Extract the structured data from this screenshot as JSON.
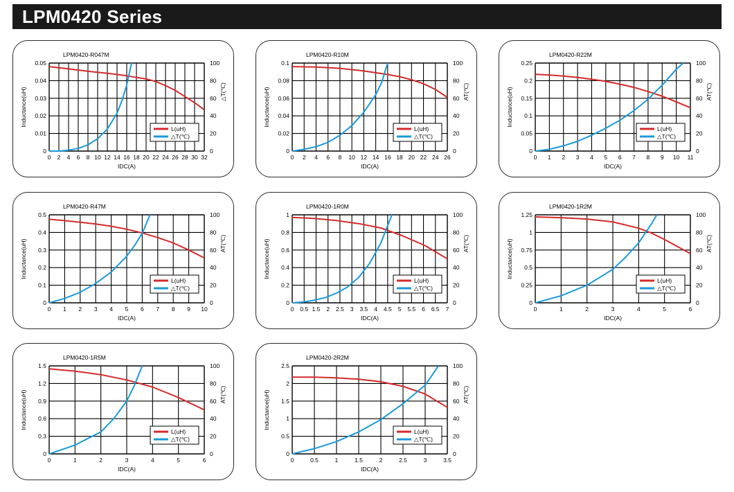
{
  "page": {
    "title": "LPM0420 Series"
  },
  "colors": {
    "inductance": "#d42a2a",
    "temperature": "#1a9ad9",
    "grid": "#000000"
  },
  "chart_data": [
    {
      "type": "line",
      "title": "LPM0420-R047M",
      "xlabel": "IDC(A)",
      "ylabel": "Inductance(uH)",
      "y2label": "△T(℃)",
      "xlim": [
        0,
        32
      ],
      "ylim": [
        0,
        0.05
      ],
      "y2lim": [
        0,
        100
      ],
      "xticks": [
        "0",
        "2",
        "4",
        "6",
        "8",
        "10",
        "12",
        "14",
        "16",
        "18",
        "20",
        "22",
        "24",
        "26",
        "28",
        "30",
        "32"
      ],
      "yticks": [
        "0",
        "0.01",
        "0.02",
        "0.03",
        "0.04",
        "0.05"
      ],
      "y2ticks": [
        "0",
        "20",
        "40",
        "60",
        "80",
        "100"
      ],
      "legend": [
        "L(uH)",
        "△T(℃)"
      ],
      "series": [
        {
          "name": "L(uH)",
          "axis": "left",
          "x": [
            0,
            4,
            8,
            12,
            16,
            18,
            20,
            22,
            24,
            26,
            28,
            30,
            32
          ],
          "y": [
            0.048,
            0.0467,
            0.0453,
            0.0442,
            0.0428,
            0.0418,
            0.041,
            0.0395,
            0.0372,
            0.0345,
            0.031,
            0.0275,
            0.0235
          ]
        },
        {
          "name": "△T(℃)",
          "axis": "right",
          "x": [
            0,
            2,
            4,
            6,
            8,
            10,
            12,
            14,
            15,
            16,
            17
          ],
          "y": [
            0,
            0,
            1,
            3,
            7,
            14,
            25,
            43,
            57,
            75,
            100
          ]
        }
      ]
    },
    {
      "type": "line",
      "title": "LPM0420-R10M",
      "xlabel": "IDC(A)",
      "ylabel": "Inductance(uH)",
      "y2label": "AT(℃)",
      "xlim": [
        0,
        26
      ],
      "ylim": [
        0,
        0.1
      ],
      "y2lim": [
        0,
        100
      ],
      "xticks": [
        "0",
        "2",
        "4",
        "6",
        "8",
        "10",
        "12",
        "14",
        "16",
        "18",
        "20",
        "22",
        "24",
        "26"
      ],
      "yticks": [
        "0",
        "0.02",
        "0.04",
        "0.06",
        "0.08",
        "0.1"
      ],
      "y2ticks": [
        "0",
        "20",
        "40",
        "60",
        "80",
        "100"
      ],
      "legend": [
        "L(uH)",
        "△T(℃)"
      ],
      "series": [
        {
          "name": "L(uH)",
          "axis": "left",
          "x": [
            0,
            4,
            8,
            12,
            16,
            18,
            20,
            22,
            24,
            26
          ],
          "y": [
            0.096,
            0.0955,
            0.094,
            0.091,
            0.087,
            0.0845,
            0.081,
            0.0765,
            0.07,
            0.061
          ]
        },
        {
          "name": "△T(℃)",
          "axis": "right",
          "x": [
            0,
            2,
            4,
            6,
            8,
            10,
            12,
            14,
            15,
            16
          ],
          "y": [
            0,
            2,
            5,
            10,
            18,
            29,
            44,
            64,
            78,
            100
          ]
        }
      ]
    },
    {
      "type": "line",
      "title": "LPM0420-R22M",
      "xlabel": "IDC(A)",
      "ylabel": "Inductance(uH)",
      "y2label": "AT(℃)",
      "xlim": [
        0,
        11
      ],
      "ylim": [
        0,
        0.25
      ],
      "y2lim": [
        0,
        100
      ],
      "xticks": [
        "0",
        "1",
        "2",
        "3",
        "4",
        "5",
        "6",
        "7",
        "8",
        "9",
        "10",
        "11"
      ],
      "yticks": [
        "0",
        "0.05",
        "0.1",
        "0.15",
        "0.2",
        "0.25"
      ],
      "y2ticks": [
        "0",
        "20",
        "40",
        "60",
        "80",
        "100"
      ],
      "legend": [
        "L(uH)",
        "△T(℃)"
      ],
      "series": [
        {
          "name": "L(uH)",
          "axis": "left",
          "x": [
            0,
            1,
            2,
            3,
            4,
            5,
            6,
            7,
            8,
            9,
            10,
            11
          ],
          "y": [
            0.218,
            0.216,
            0.213,
            0.209,
            0.204,
            0.198,
            0.19,
            0.181,
            0.169,
            0.156,
            0.14,
            0.123
          ]
        },
        {
          "name": "△T(℃)",
          "axis": "right",
          "x": [
            0,
            1,
            2,
            3,
            4,
            5,
            6,
            7,
            8,
            9,
            10,
            10.5
          ],
          "y": [
            0,
            2,
            6,
            11,
            18,
            26,
            35,
            46,
            59,
            75,
            93,
            100
          ]
        }
      ]
    },
    {
      "type": "line",
      "title": "LPM0420-R47M",
      "xlabel": "IDC(A)",
      "ylabel": "Inductance(uH)",
      "y2label": "AT(℃)",
      "xlim": [
        0,
        10
      ],
      "ylim": [
        0,
        0.5
      ],
      "y2lim": [
        0,
        100
      ],
      "xticks": [
        "0",
        "1",
        "2",
        "3",
        "4",
        "5",
        "6",
        "7",
        "8",
        "9",
        "10"
      ],
      "yticks": [
        "0",
        "0.1",
        "0.2",
        "0.3",
        "0.4",
        "0.5"
      ],
      "y2ticks": [
        "0",
        "20",
        "40",
        "60",
        "80",
        "100"
      ],
      "legend": [
        "L(uH)",
        "△T(℃)"
      ],
      "series": [
        {
          "name": "L(uH)",
          "axis": "left",
          "x": [
            0,
            1,
            2,
            3,
            4,
            5,
            6,
            7,
            8,
            9,
            10
          ],
          "y": [
            0.475,
            0.467,
            0.458,
            0.448,
            0.435,
            0.418,
            0.397,
            0.371,
            0.34,
            0.3,
            0.255
          ]
        },
        {
          "name": "△T(℃)",
          "axis": "right",
          "x": [
            0,
            1,
            2,
            3,
            4,
            5,
            5.5,
            6,
            6.5
          ],
          "y": [
            0,
            5,
            12,
            22,
            35,
            53,
            65,
            79,
            100
          ]
        }
      ]
    },
    {
      "type": "line",
      "title": "LPM0420-1R0M",
      "xlabel": "IDC(A)",
      "ylabel": "Inductance(uH)",
      "y2label": "AT(℃)",
      "xlim": [
        0,
        7
      ],
      "ylim": [
        0,
        1
      ],
      "y2lim": [
        0,
        100
      ],
      "xticks": [
        "0",
        "0.5",
        "1.5",
        "2",
        "2.5",
        "3",
        "3.5",
        "4",
        "4.5",
        "5",
        "5.5",
        "6",
        "6.5",
        "7"
      ],
      "yticks": [
        "0",
        "0.2",
        "0.4",
        "0.6",
        "0.8",
        "1"
      ],
      "y2ticks": [
        "0",
        "20",
        "40",
        "60",
        "80",
        "100"
      ],
      "legend": [
        "L(uH)",
        "△T(℃)"
      ],
      "series": [
        {
          "name": "L(uH)",
          "axis": "left",
          "x": [
            0,
            1,
            2,
            3,
            4,
            5,
            6,
            7
          ],
          "y": [
            0.97,
            0.958,
            0.935,
            0.9,
            0.85,
            0.76,
            0.65,
            0.5
          ]
        },
        {
          "name": "△T(℃)",
          "axis": "right",
          "x": [
            0,
            0.5,
            1,
            1.5,
            2,
            2.5,
            3,
            3.5,
            4,
            4.5
          ],
          "y": [
            0,
            1,
            3,
            6,
            11,
            18,
            29,
            45,
            68,
            100
          ]
        }
      ]
    },
    {
      "type": "line",
      "title": "LPM0420-1R2M",
      "xlabel": "IDC(A)",
      "ylabel": "Inductance(uH)",
      "y2label": "AT(℃)",
      "xlim": [
        0,
        6
      ],
      "ylim": [
        0,
        1.25
      ],
      "y2lim": [
        0,
        100
      ],
      "xticks": [
        "0",
        "1",
        "2",
        "3",
        "4",
        "5",
        "6"
      ],
      "yticks": [
        "0",
        "0.25",
        "0.5",
        "0.75",
        "1",
        "1.25"
      ],
      "y2ticks": [
        "0",
        "20",
        "40",
        "60",
        "80",
        "100"
      ],
      "legend": [
        "L(uH)",
        "△T(℃)"
      ],
      "series": [
        {
          "name": "L(uH)",
          "axis": "left",
          "x": [
            0,
            1,
            2,
            3,
            4,
            4.5,
            5,
            5.5,
            6
          ],
          "y": [
            1.22,
            1.21,
            1.19,
            1.15,
            1.06,
            0.99,
            0.9,
            0.8,
            0.7
          ]
        },
        {
          "name": "△T(℃)",
          "axis": "right",
          "x": [
            0,
            1,
            2,
            3,
            3.5,
            4,
            4.5,
            4.7
          ],
          "y": [
            0,
            8,
            20,
            38,
            52,
            68,
            90,
            100
          ]
        }
      ]
    },
    {
      "type": "line",
      "title": "LPM0420-1R5M",
      "xlabel": "IDC(A)",
      "ylabel": "Inductance(uH)",
      "y2label": "AT(℃)",
      "xlim": [
        0,
        6
      ],
      "ylim": [
        0,
        1.5
      ],
      "y2lim": [
        0,
        100
      ],
      "xticks": [
        "0",
        "1",
        "2",
        "3",
        "4",
        "5",
        "6"
      ],
      "yticks": [
        "0",
        "0.3",
        "0.6",
        "0.9",
        "1.2",
        "1.5"
      ],
      "y2ticks": [
        "0",
        "20",
        "40",
        "60",
        "80",
        "100"
      ],
      "legend": [
        "L(uH)",
        "△T(℃)"
      ],
      "series": [
        {
          "name": "L(uH)",
          "axis": "left",
          "x": [
            0,
            1,
            2,
            3,
            4,
            5,
            6
          ],
          "y": [
            1.45,
            1.41,
            1.35,
            1.26,
            1.14,
            0.96,
            0.75
          ]
        },
        {
          "name": "△T(℃)",
          "axis": "right",
          "x": [
            0,
            1,
            2,
            2.5,
            3,
            3.3,
            3.6
          ],
          "y": [
            0,
            10,
            25,
            40,
            60,
            78,
            100
          ]
        }
      ]
    },
    {
      "type": "line",
      "title": "LPM0420-2R2M",
      "xlabel": "IDC(A)",
      "ylabel": "Inductance(uH)",
      "y2label": "AT(℃)",
      "xlim": [
        0,
        3.5
      ],
      "ylim": [
        0,
        2.5
      ],
      "y2lim": [
        0,
        100
      ],
      "xticks": [
        "0",
        "0.5",
        "1",
        "1.5",
        "2",
        "2.5",
        "3",
        "3.5"
      ],
      "yticks": [
        "0",
        "0.5",
        "1",
        "1.5",
        "2",
        "2.5"
      ],
      "y2ticks": [
        "0",
        "20",
        "40",
        "60",
        "80",
        "100"
      ],
      "legend": [
        "L(uH)",
        "△T(℃)"
      ],
      "series": [
        {
          "name": "L(uH)",
          "axis": "left",
          "x": [
            0,
            0.5,
            1,
            1.5,
            2,
            2.5,
            3,
            3.5
          ],
          "y": [
            2.18,
            2.18,
            2.16,
            2.12,
            2.05,
            1.92,
            1.7,
            1.32
          ]
        },
        {
          "name": "△T(℃)",
          "axis": "right",
          "x": [
            0,
            0.5,
            1,
            1.5,
            2,
            2.5,
            3,
            3.3
          ],
          "y": [
            0,
            6,
            14,
            25,
            39,
            57,
            78,
            100
          ]
        }
      ]
    }
  ]
}
